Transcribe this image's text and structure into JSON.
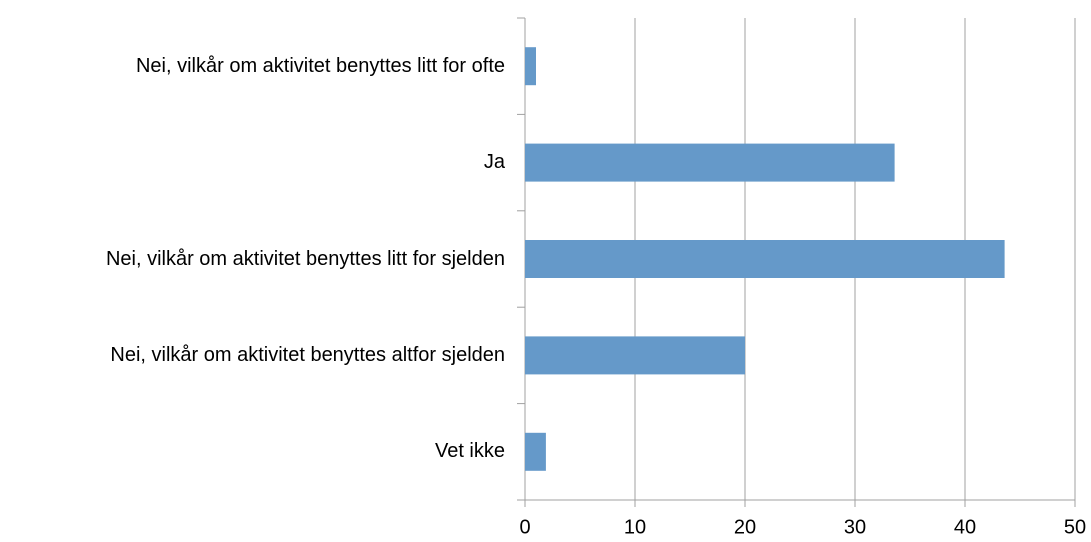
{
  "chart_data": {
    "type": "bar",
    "orientation": "horizontal",
    "categories": [
      "Nei, vilkår om aktivitet benyttes litt for ofte",
      "Ja",
      "Nei, vilkår om aktivitet benyttes litt for sjelden",
      "Nei, vilkår om aktivitet benyttes altfor sjelden",
      "Vet ikke"
    ],
    "values": [
      1.0,
      33.6,
      43.6,
      20.0,
      1.9
    ],
    "color": "#6599c9",
    "xlim": [
      0,
      50
    ],
    "xticks": [
      0,
      10,
      20,
      30,
      40,
      50
    ],
    "grid": true
  }
}
